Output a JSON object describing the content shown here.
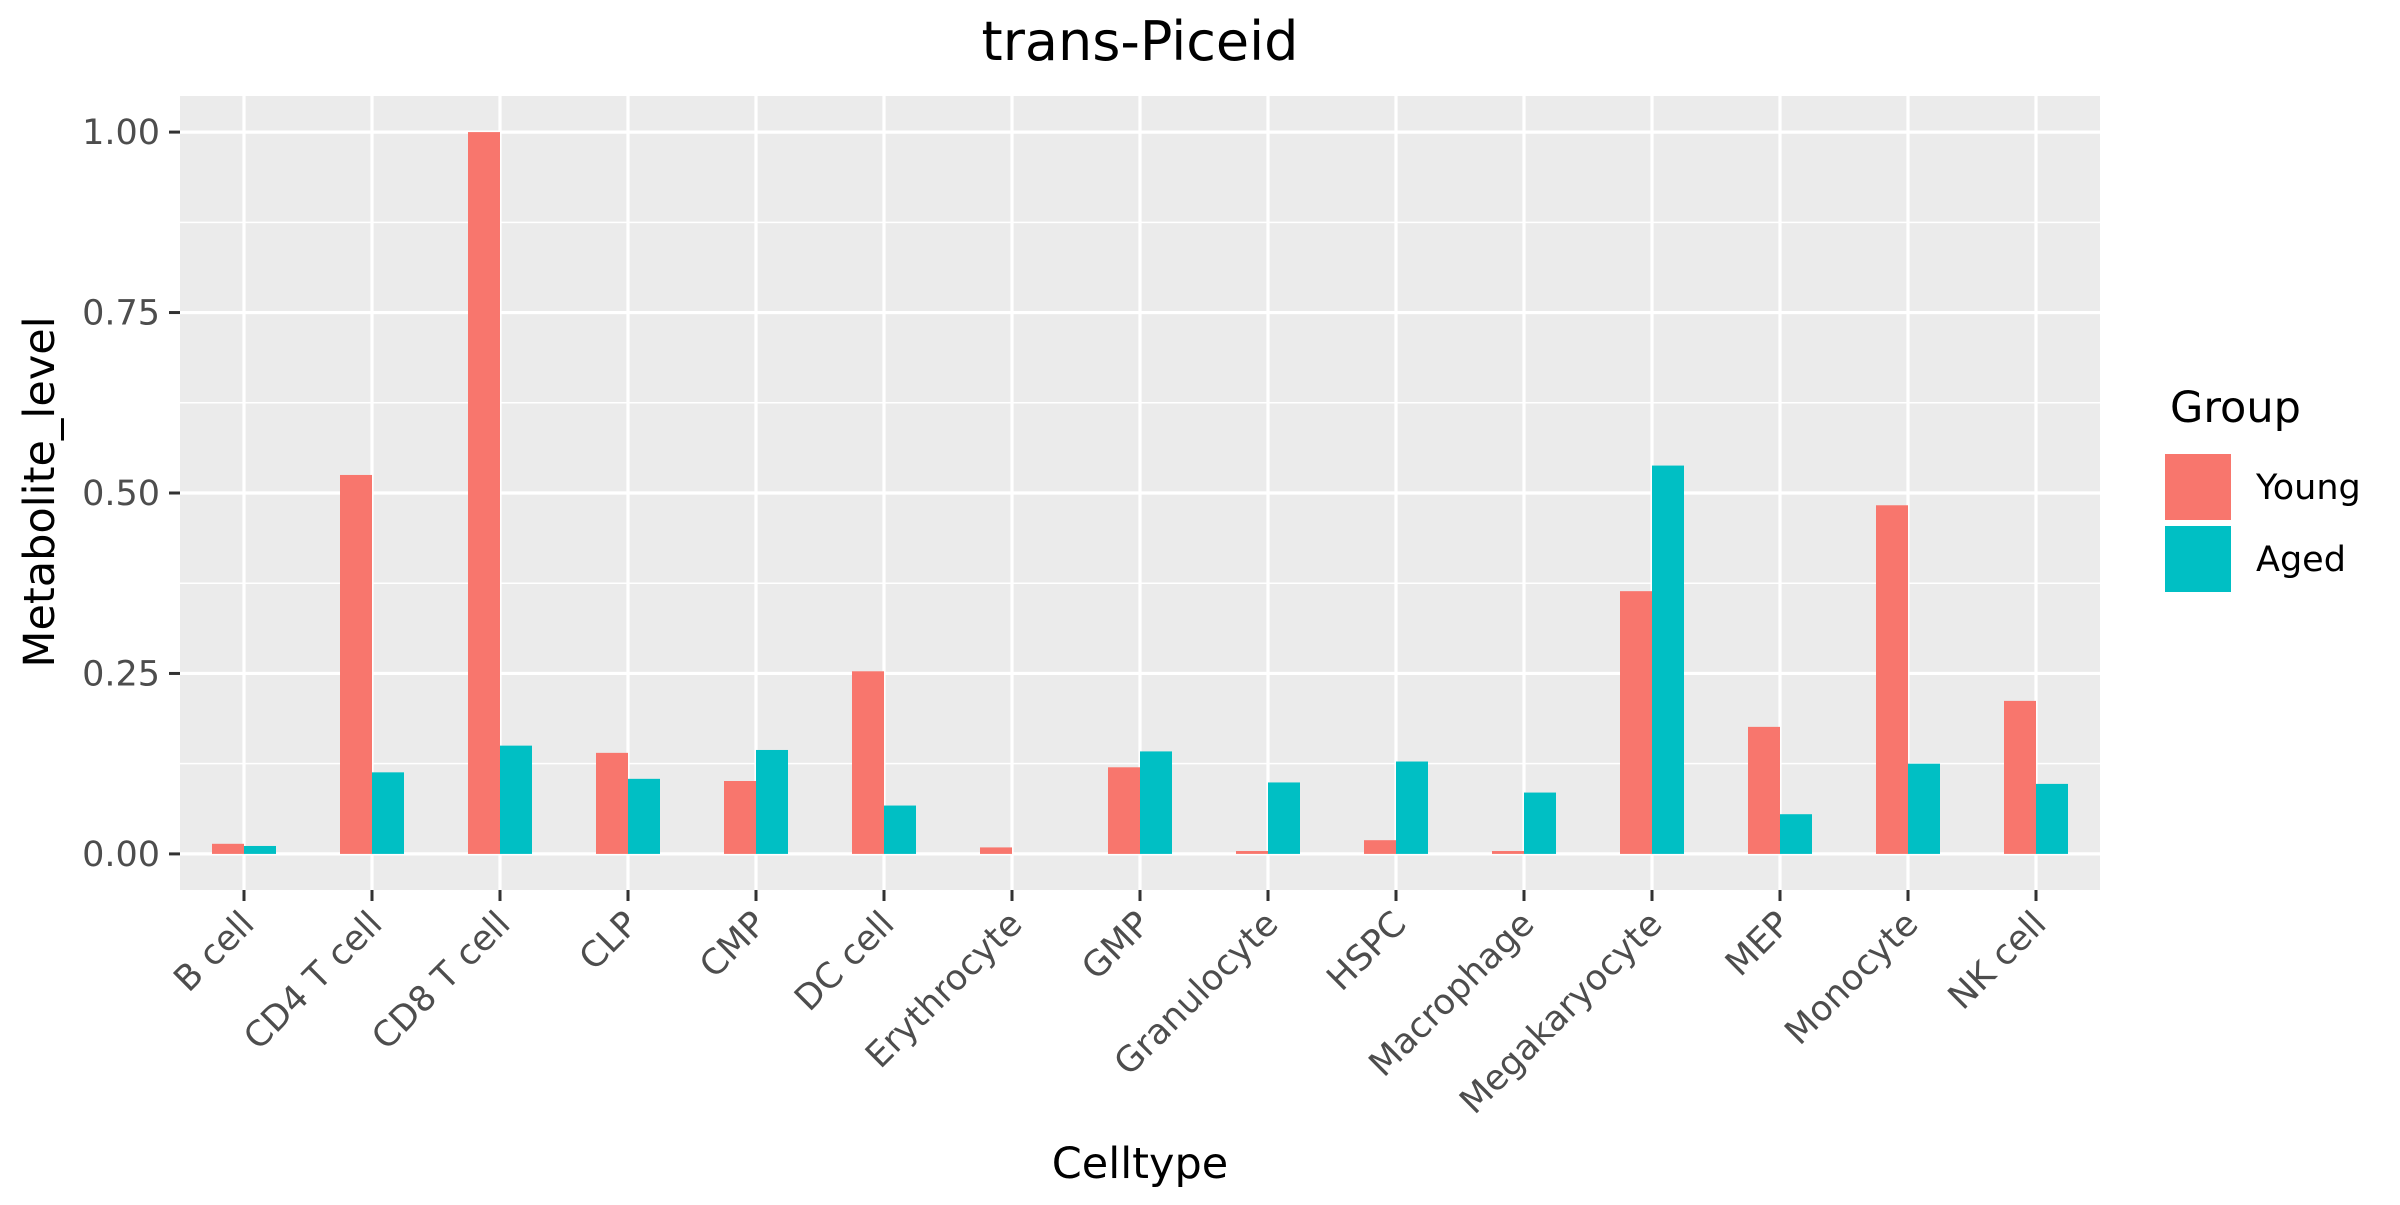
{
  "chart_data": {
    "type": "bar",
    "title": "trans-Piceid",
    "xlabel": "Celltype",
    "ylabel": "Metabolite_level",
    "ylim": [
      -0.05,
      1.05
    ],
    "yticks": [
      "0.00",
      "0.25",
      "0.50",
      "0.75",
      "1.00"
    ],
    "ytick_values": [
      0,
      0.25,
      0.5,
      0.75,
      1.0
    ],
    "grid": true,
    "legend": {
      "title": "Group",
      "placement": "right"
    },
    "categories": [
      "B cell",
      "CD4 T cell",
      "CD8 T cell",
      "CLP",
      "CMP",
      "DC cell",
      "Erythrocyte",
      "GMP",
      "Granulocyte",
      "HSPC",
      "Macrophage",
      "Megakaryocyte",
      "MEP",
      "Monocyte",
      "NK cell"
    ],
    "series": [
      {
        "name": "Young",
        "color": "#F8766D",
        "values": [
          0.014,
          0.525,
          1.0,
          0.14,
          0.101,
          0.253,
          0.009,
          0.12,
          0.004,
          0.019,
          0.004,
          0.364,
          0.176,
          0.483,
          0.212
        ]
      },
      {
        "name": "Aged",
        "color": "#00BFC4",
        "values": [
          0.011,
          0.113,
          0.15,
          0.104,
          0.144,
          0.067,
          0.0,
          0.142,
          0.099,
          0.128,
          0.085,
          0.538,
          0.055,
          0.125,
          0.097
        ]
      }
    ],
    "panel_background": "#EBEBEB",
    "grid_color": "#FFFFFF",
    "tick_color": "#333333"
  }
}
